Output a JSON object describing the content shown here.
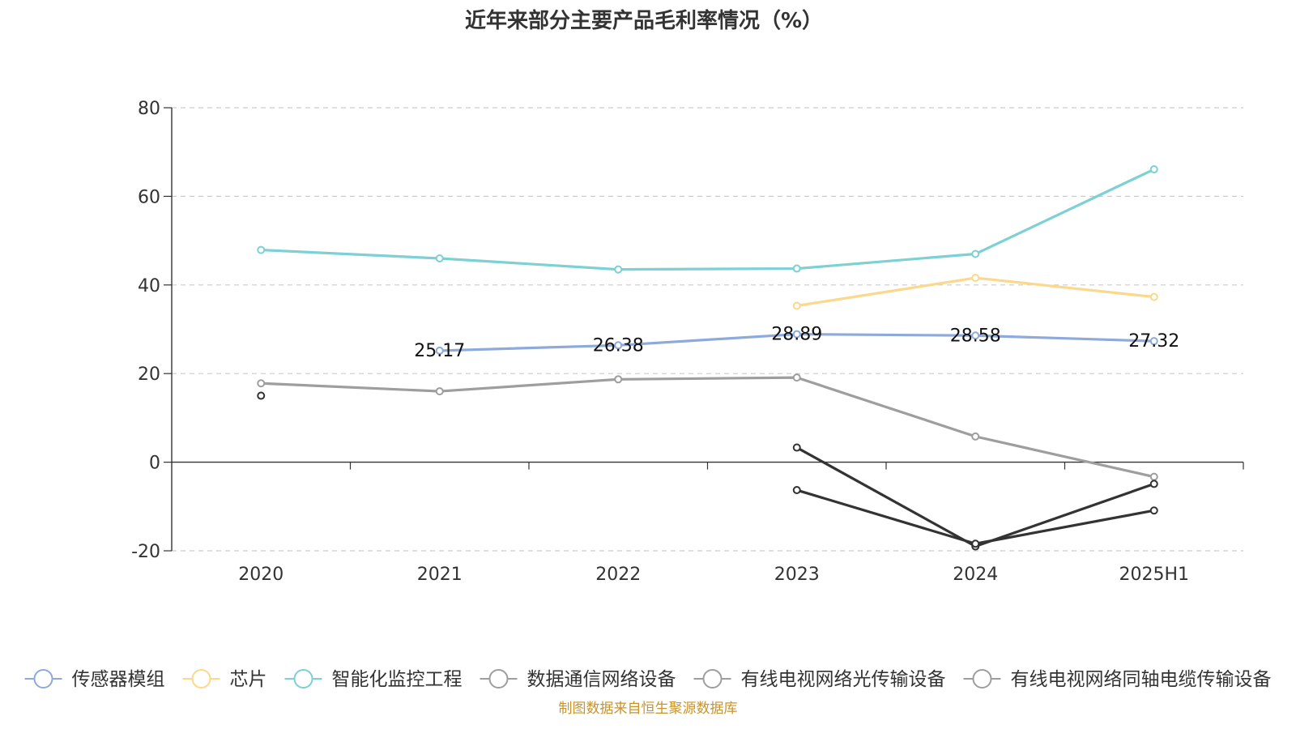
{
  "chart_data": {
    "type": "line",
    "title": "近年来部分主要产品毛利率情况（%）",
    "xlabel": "",
    "ylabel": "",
    "categories": [
      "2020",
      "2021",
      "2022",
      "2023",
      "2024",
      "2025H1"
    ],
    "ylim": [
      -20,
      80
    ],
    "yticks": [
      -20,
      0,
      20,
      40,
      60,
      80
    ],
    "grid": true,
    "legend_position": "bottom",
    "series": [
      {
        "name": "传感器模组",
        "color": "#8eaadb",
        "values": [
          null,
          25.17,
          26.38,
          28.89,
          28.58,
          27.32
        ],
        "show_labels": true
      },
      {
        "name": "芯片",
        "color": "#fbd88c",
        "values": [
          null,
          null,
          null,
          35.3,
          41.6,
          37.3
        ],
        "show_labels": false
      },
      {
        "name": "智能化监控工程",
        "color": "#7dd0d3",
        "values": [
          47.9,
          46.0,
          43.5,
          43.7,
          47.0,
          66.1
        ],
        "show_labels": false
      },
      {
        "name": "数据通信网络设备",
        "color": "#9e9e9e",
        "values": [
          17.8,
          16.0,
          18.7,
          19.1,
          5.8,
          -3.3
        ],
        "show_labels": false
      },
      {
        "name": "有线电视网络光传输设备",
        "color": "#333333",
        "values": [
          null,
          null,
          null,
          3.3,
          -19.0,
          -4.9
        ],
        "show_labels": false
      },
      {
        "name": "有线电视网络同轴电缆传输设备",
        "color": "#333333",
        "values": [
          15.0,
          null,
          null,
          -6.3,
          -18.4,
          -10.9
        ],
        "show_labels": false
      }
    ]
  },
  "source": "制图数据来自恒生聚源数据库"
}
